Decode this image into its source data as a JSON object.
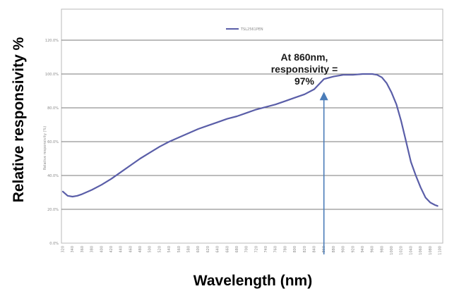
{
  "chart_data": {
    "type": "line",
    "title": "",
    "xlabel": "Wavelength (nm)",
    "ylabel": "Relative responsivity %",
    "inner_ylabel": "Relative responsivity (%)",
    "legend": {
      "label": "TSL2561PEN",
      "placement": "top-center"
    },
    "grid": true,
    "xlim": [
      320,
      1100
    ],
    "ylim": [
      0,
      120
    ],
    "y_ticks": [
      "0.0%",
      "20.0%",
      "40.0%",
      "60.0%",
      "80.0%",
      "100.0%",
      "120.0%"
    ],
    "x_ticks": [
      "320",
      "340",
      "360",
      "380",
      "400",
      "420",
      "440",
      "460",
      "480",
      "500",
      "520",
      "540",
      "560",
      "580",
      "600",
      "620",
      "640",
      "660",
      "680",
      "700",
      "720",
      "740",
      "760",
      "780",
      "800",
      "820",
      "840",
      "860",
      "880",
      "900",
      "920",
      "940",
      "960",
      "980",
      "1000",
      "1020",
      "1040",
      "1060",
      "1080",
      "1100"
    ],
    "series": [
      {
        "name": "TSL2561PEN",
        "color": "#5a5ea8",
        "x": [
          320,
          330,
          340,
          350,
          360,
          380,
          400,
          420,
          440,
          460,
          480,
          500,
          520,
          540,
          560,
          580,
          600,
          620,
          640,
          660,
          680,
          700,
          720,
          740,
          760,
          780,
          800,
          820,
          840,
          860,
          880,
          900,
          920,
          940,
          960,
          970,
          980,
          990,
          1000,
          1010,
          1020,
          1030,
          1040,
          1050,
          1060,
          1070,
          1080,
          1090,
          1095
        ],
        "y": [
          30.5,
          28,
          27.5,
          28,
          29,
          31.5,
          34.5,
          38,
          42,
          46,
          50,
          53.5,
          57,
          60,
          62.5,
          65,
          67.5,
          69.5,
          71.5,
          73.5,
          75,
          77,
          79,
          80.5,
          82,
          84,
          86,
          88,
          91,
          97,
          98.5,
          99.5,
          99.5,
          100,
          100,
          99.5,
          98,
          94.5,
          89,
          82,
          72,
          60,
          48,
          40,
          33,
          27,
          24,
          22.5,
          22
        ]
      }
    ],
    "annotations": [
      {
        "text_lines": [
          "At 860nm,",
          "responsivity =",
          "97%"
        ],
        "x": 860,
        "y": 97,
        "arrow_color": "#4a7cb8"
      }
    ]
  }
}
